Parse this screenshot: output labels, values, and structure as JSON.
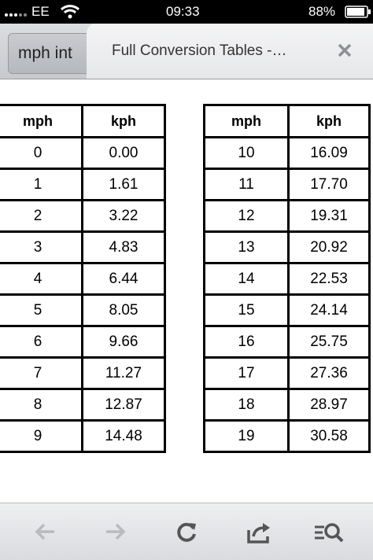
{
  "status_bar": {
    "carrier": "EE",
    "time": "09:33",
    "battery": "88%"
  },
  "tabs": {
    "inactive": "mph int",
    "active": "Full Conversion Tables -…"
  },
  "tables": [
    {
      "headers": [
        "mph",
        "kph"
      ],
      "rows": [
        [
          "0",
          "0.00"
        ],
        [
          "1",
          "1.61"
        ],
        [
          "2",
          "3.22"
        ],
        [
          "3",
          "4.83"
        ],
        [
          "4",
          "6.44"
        ],
        [
          "5",
          "8.05"
        ],
        [
          "6",
          "9.66"
        ],
        [
          "7",
          "11.27"
        ],
        [
          "8",
          "12.87"
        ],
        [
          "9",
          "14.48"
        ]
      ]
    },
    {
      "headers": [
        "mph",
        "kph"
      ],
      "rows": [
        [
          "10",
          "16.09"
        ],
        [
          "11",
          "17.70"
        ],
        [
          "12",
          "19.31"
        ],
        [
          "13",
          "20.92"
        ],
        [
          "14",
          "22.53"
        ],
        [
          "15",
          "24.14"
        ],
        [
          "16",
          "25.75"
        ],
        [
          "17",
          "27.36"
        ],
        [
          "18",
          "28.97"
        ],
        [
          "19",
          "30.58"
        ]
      ]
    }
  ]
}
